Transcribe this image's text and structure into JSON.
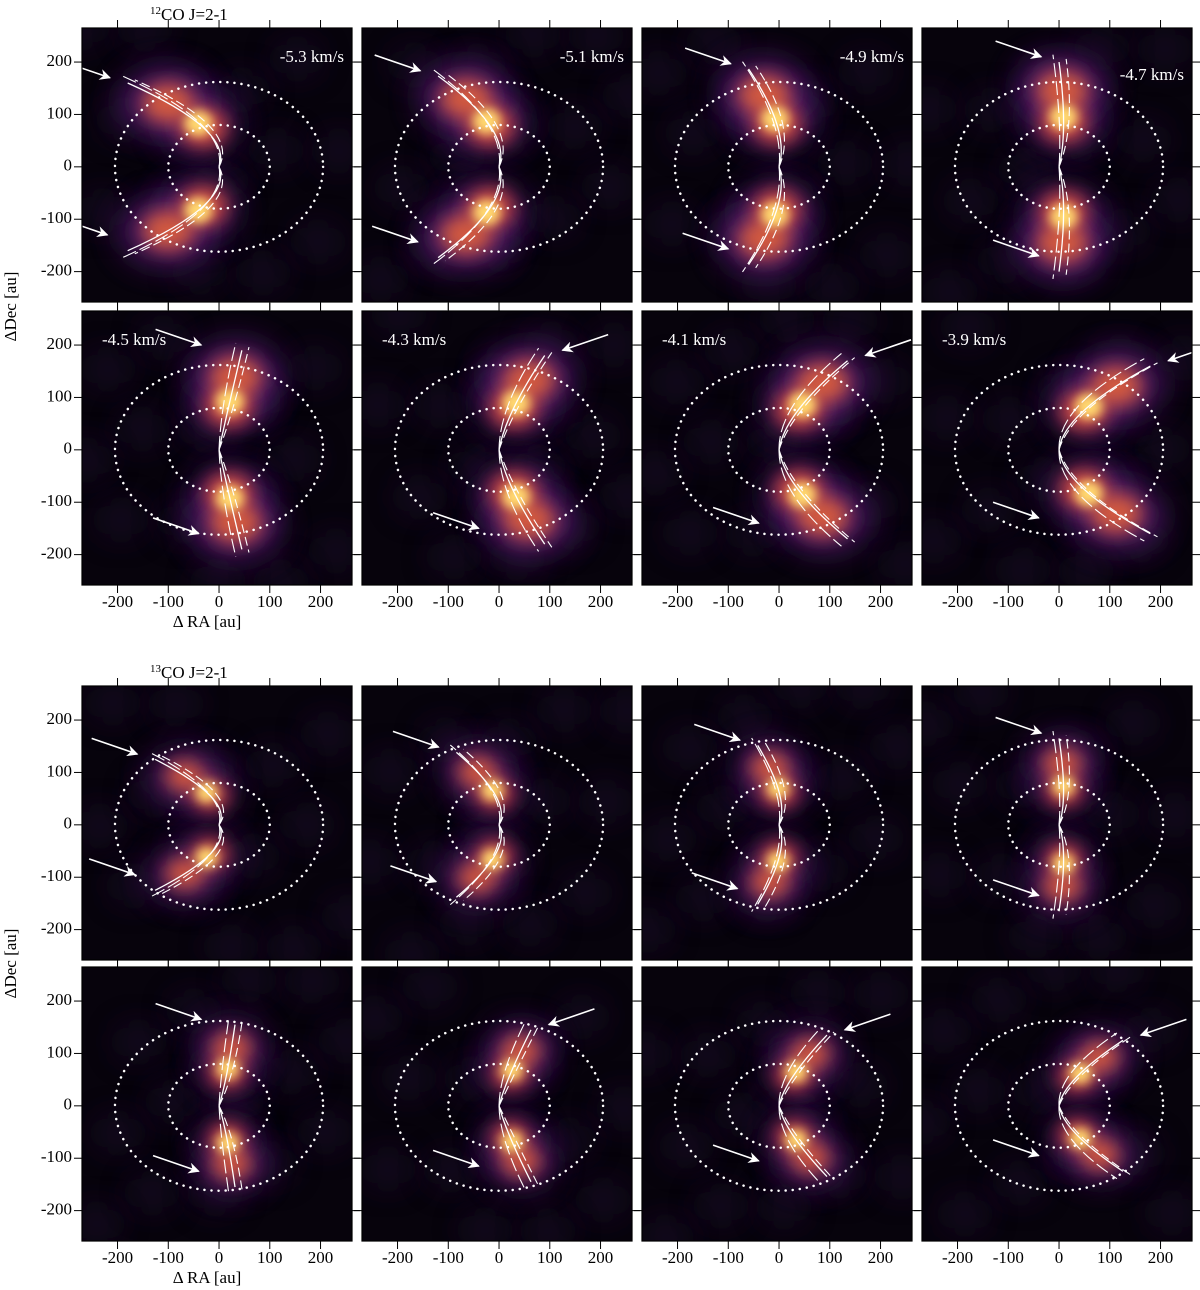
{
  "axes": {
    "xlabel": "Δ RA [au]",
    "ylabel": "ΔDec [au]",
    "xlim": [
      -270,
      262
    ],
    "ylim": [
      -258,
      265
    ],
    "xticks": [
      -200,
      -100,
      0,
      100,
      200
    ],
    "yticks": [
      -200,
      -100,
      0,
      100,
      200
    ]
  },
  "groups": [
    {
      "isotope": "12",
      "line": "CO J=2-1",
      "velocities": [
        "-5.3 km/s",
        "-5.1 km/s",
        "-4.9 km/s",
        "-4.7 km/s",
        "-4.5 km/s",
        "-4.3 km/s",
        "-4.1 km/s",
        "-3.9 km/s"
      ]
    },
    {
      "isotope": "13",
      "line": "CO J=2-1"
    }
  ]
}
